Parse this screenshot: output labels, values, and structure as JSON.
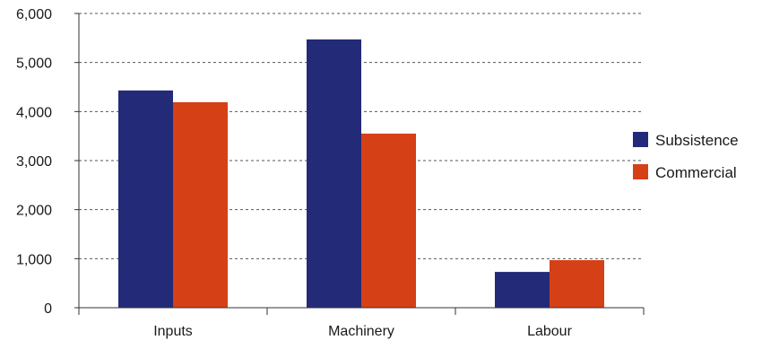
{
  "chart_data": {
    "type": "bar",
    "categories": [
      "Inputs",
      "Machinery",
      "Labour"
    ],
    "series": [
      {
        "name": "Subsistence",
        "color": "#232a77",
        "values": [
          4430,
          5470,
          730
        ]
      },
      {
        "name": "Commercial",
        "color": "#d64016",
        "values": [
          4190,
          3550,
          970
        ]
      }
    ],
    "title": "",
    "xlabel": "",
    "ylabel": "",
    "ylim": [
      0,
      6000
    ],
    "yticks": [
      {
        "value": 0,
        "label": "0"
      },
      {
        "value": 1000,
        "label": "1,000"
      },
      {
        "value": 2000,
        "label": "2,000"
      },
      {
        "value": 3000,
        "label": "3,000"
      },
      {
        "value": 4000,
        "label": "4,000"
      },
      {
        "value": 5000,
        "label": "5,000"
      },
      {
        "value": 6000,
        "label": "6,000"
      }
    ],
    "grid": true,
    "legend": "right"
  }
}
